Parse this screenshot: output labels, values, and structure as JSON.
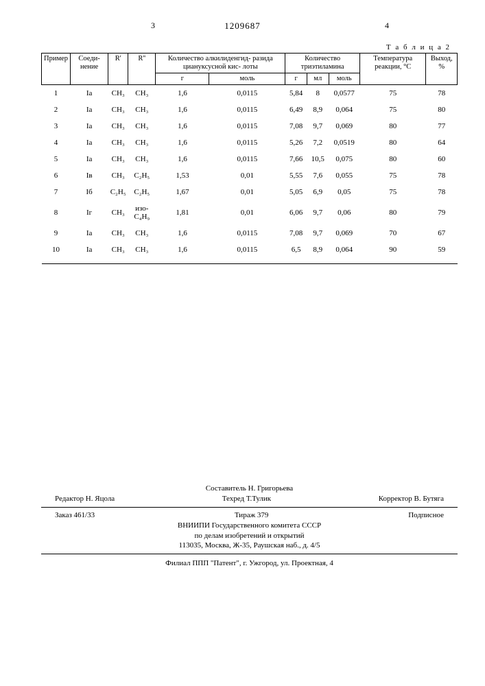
{
  "header": {
    "left_page": "3",
    "patent_no": "1209687",
    "right_page": "4",
    "table_label": "Т а б л и ц а   2"
  },
  "table": {
    "head": {
      "c1": "Пример",
      "c2": "Соеди-\nнение",
      "c3": "R'",
      "c4": "R''",
      "c5": "Количество алкилиденгид-\nразида циануксусной кис-\nлоты",
      "c5a": "г",
      "c5b": "моль",
      "c6": "Количество триэтиламина",
      "c6a": "г",
      "c6b": "мл",
      "c6c": "моль",
      "c7": "Температура\nреакции, °С",
      "c8": "Выход,\n%"
    },
    "rows": [
      {
        "n": "1",
        "cmp": "Iа",
        "r1": "CH₃",
        "r2": "CH₃",
        "g": "1,6",
        "mol": "0,0115",
        "tg": "5,84",
        "tml": "8",
        "tmol": "0,0577",
        "temp": "75",
        "y": "78"
      },
      {
        "n": "2",
        "cmp": "Iа",
        "r1": "CH₃",
        "r2": "CH₃",
        "g": "1,6",
        "mol": "0,0115",
        "tg": "6,49",
        "tml": "8,9",
        "tmol": "0,064",
        "temp": "75",
        "y": "80"
      },
      {
        "n": "3",
        "cmp": "Iа",
        "r1": "CH₃",
        "r2": "CH₃",
        "g": "1,6",
        "mol": "0,0115",
        "tg": "7,08",
        "tml": "9,7",
        "tmol": "0,069",
        "temp": "80",
        "y": "77"
      },
      {
        "n": "4",
        "cmp": "Iа",
        "r1": "CH₃",
        "r2": "CH₃",
        "g": "1,6",
        "mol": "0,0115",
        "tg": "5,26",
        "tml": "7,2",
        "tmol": "0,0519",
        "temp": "80",
        "y": "64"
      },
      {
        "n": "5",
        "cmp": "Iа",
        "r1": "CH₃",
        "r2": "CH₃",
        "g": "1,6",
        "mol": "0,0115",
        "tg": "7,66",
        "tml": "10,5",
        "tmol": "0,075",
        "temp": "80",
        "y": "60"
      },
      {
        "n": "6",
        "cmp": "Iв",
        "r1": "CH₃",
        "r2": "C₂H₅",
        "g": "1,53",
        "mol": "0,01",
        "tg": "5,55",
        "tml": "7,6",
        "tmol": "0,055",
        "temp": "75",
        "y": "78"
      },
      {
        "n": "7",
        "cmp": "Iб",
        "r1": "C₂H₅",
        "r2": "C₂H₅",
        "g": "1,67",
        "mol": "0,01",
        "tg": "5,05",
        "tml": "6,9",
        "tmol": "0,05",
        "temp": "75",
        "y": "78"
      },
      {
        "n": "8",
        "cmp": "Iг",
        "r1": "CH₃",
        "r2": "изо-C₄H₉",
        "g": "1,81",
        "mol": "0,01",
        "tg": "6,06",
        "tml": "9,7",
        "tmol": "0,06",
        "temp": "80",
        "y": "79"
      },
      {
        "n": "9",
        "cmp": "Iа",
        "r1": "CH₃",
        "r2": "CH₃",
        "g": "1,6",
        "mol": "0,0115",
        "tg": "7,08",
        "tml": "9,7",
        "tmol": "0,069",
        "temp": "70",
        "y": "67"
      },
      {
        "n": "10",
        "cmp": "Iа",
        "r1": "CH₃",
        "r2": "CH₃",
        "g": "1,6",
        "mol": "0,0115",
        "tg": "6,5",
        "tml": "8,9",
        "tmol": "0,064",
        "temp": "90",
        "y": "59"
      }
    ]
  },
  "colophon": {
    "compiler": "Составитель Н. Григорьева",
    "editor": "Редактор Н. Яцола",
    "tech": "Техред Т.Тулик",
    "corrector": "Корректор В. Бутяга",
    "order": "Заказ 461/33",
    "print_run": "Тираж 379",
    "subscription": "Подписное",
    "org1": "ВНИИПИ Государственного комитета СССР",
    "org2": "по делам изобретений и открытий",
    "address1": "113035, Москва, Ж-35, Раушская наб., д. 4/5",
    "branch": "Филиал ППП \"Патент\", г. Ужгород, ул. Проектная, 4"
  }
}
